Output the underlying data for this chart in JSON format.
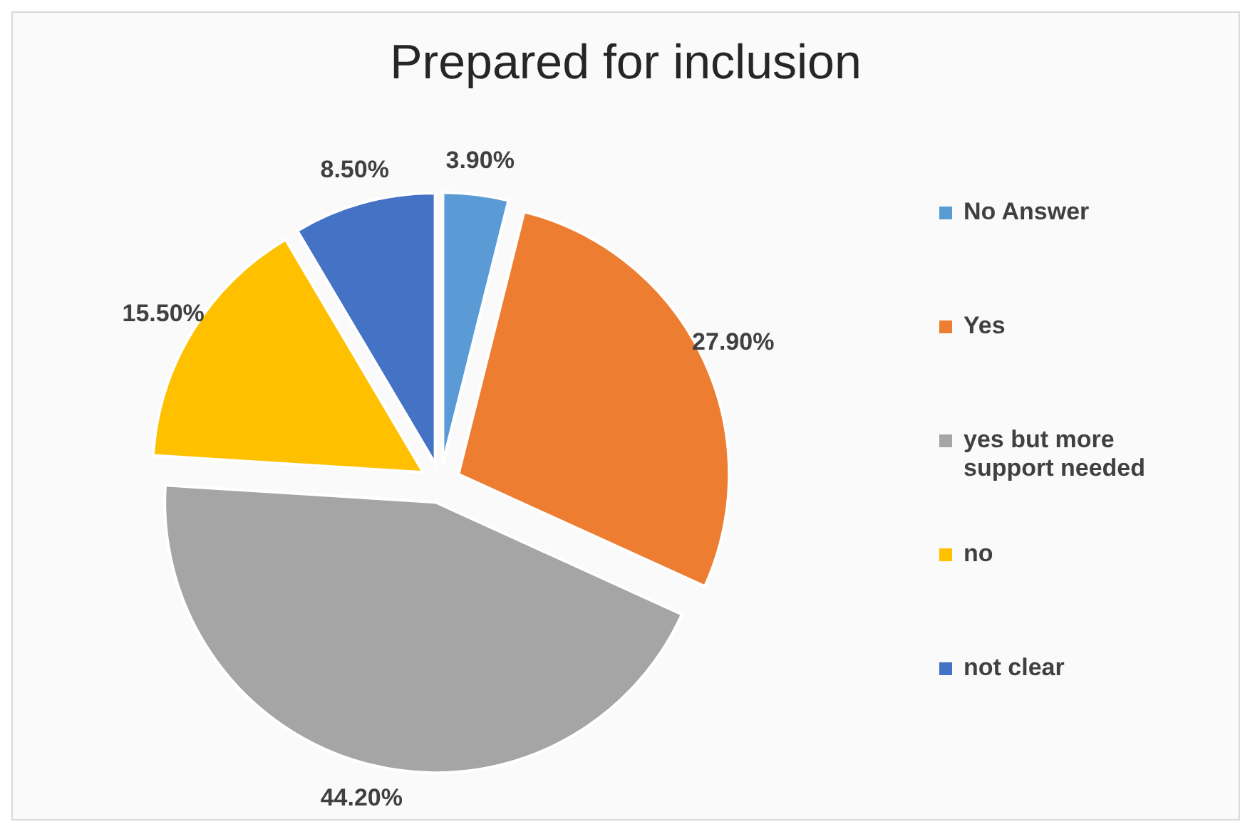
{
  "chart_data": {
    "type": "pie",
    "title": "Prepared for inclusion",
    "categories": [
      "No Answer",
      "Yes",
      "yes but more support needed",
      "no",
      "not clear"
    ],
    "values": [
      3.9,
      27.9,
      44.2,
      15.5,
      8.5
    ],
    "colors": [
      "#5b9bd5",
      "#ed7d31",
      "#a5a5a5",
      "#ffc000",
      "#4472c4"
    ],
    "value_labels": [
      "3.90%",
      "27.90%",
      "44.20%",
      "15.50%",
      "8.50%"
    ],
    "legend": "right"
  }
}
